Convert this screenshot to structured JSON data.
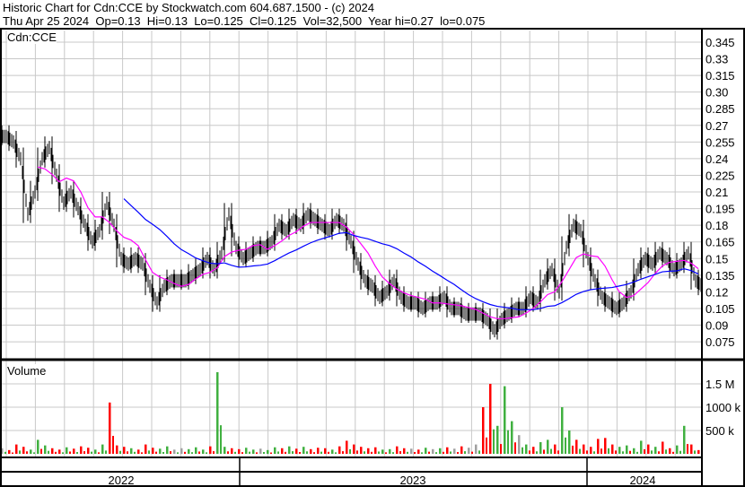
{
  "header": {
    "title": "Historic Chart for Cdn:CCE by Stockwatch.com 604.687.1500 - (c) 2024",
    "quote": "Thu Apr 25 2024  Op=0.13  Hi=0.13  Lo=0.125  Cl=0.125  Vol=32,500  Year hi=0.27  lo=0.075"
  },
  "chart_data": {
    "type": "line",
    "title": "Cdn:CCE",
    "price_axis": {
      "ticks": [
        "0.345",
        "0.33",
        "0.315",
        "0.30",
        "0.285",
        "0.27",
        "0.255",
        "0.24",
        "0.225",
        "0.21",
        "0.195",
        "0.18",
        "0.165",
        "0.15",
        "0.135",
        "0.12",
        "0.105",
        "0.09",
        "0.075"
      ],
      "ylim": [
        0.0675,
        0.3525
      ]
    },
    "volume_axis": {
      "label": "Volume",
      "ticks": [
        "1.5 M",
        "1000 k",
        "500 k"
      ],
      "ylim_k": [
        0,
        1900
      ]
    },
    "x_labels": [
      "2022",
      "2023",
      "2024"
    ],
    "grid": true,
    "colors": {
      "up": "#40b040",
      "down": "#ff0000",
      "flat": "#a0a0a0",
      "bars": "#000000",
      "ma_short": "#ff00ff",
      "ma_long": "#0000ff"
    },
    "close": [
      0.26,
      0.255,
      0.24,
      0.19,
      0.21,
      0.24,
      0.25,
      0.225,
      0.2,
      0.21,
      0.195,
      0.18,
      0.165,
      0.175,
      0.2,
      0.18,
      0.15,
      0.145,
      0.15,
      0.145,
      0.125,
      0.11,
      0.125,
      0.13,
      0.13,
      0.13,
      0.135,
      0.14,
      0.15,
      0.14,
      0.155,
      0.19,
      0.16,
      0.15,
      0.155,
      0.16,
      0.16,
      0.165,
      0.18,
      0.175,
      0.185,
      0.18,
      0.19,
      0.185,
      0.18,
      0.175,
      0.185,
      0.18,
      0.165,
      0.145,
      0.13,
      0.125,
      0.115,
      0.12,
      0.13,
      0.115,
      0.11,
      0.11,
      0.105,
      0.11,
      0.11,
      0.115,
      0.105,
      0.105,
      0.1,
      0.1,
      0.1,
      0.095,
      0.085,
      0.095,
      0.1,
      0.105,
      0.105,
      0.115,
      0.11,
      0.13,
      0.14,
      0.12,
      0.16,
      0.18,
      0.175,
      0.15,
      0.13,
      0.115,
      0.11,
      0.105,
      0.11,
      0.12,
      0.14,
      0.15,
      0.145,
      0.155,
      0.15,
      0.14,
      0.145,
      0.155,
      0.13,
      0.125
    ],
    "volume_k": [
      120,
      80,
      200,
      150,
      90,
      300,
      180,
      120,
      90,
      140,
      110,
      160,
      130,
      90,
      200,
      1100,
      180,
      150,
      120,
      90,
      200,
      130,
      110,
      160,
      90,
      120,
      100,
      140,
      90,
      160,
      1750,
      150,
      120,
      100,
      130,
      90,
      110,
      80,
      140,
      120,
      160,
      110,
      150,
      100,
      130,
      120,
      90,
      160,
      280,
      200,
      150,
      120,
      140,
      90,
      100,
      160,
      120,
      110,
      90,
      130,
      100,
      120,
      140,
      110,
      160,
      130,
      200,
      1000,
      1500,
      600,
      1450,
      700,
      400,
      200,
      150,
      250,
      300,
      200,
      1000,
      500,
      300,
      200,
      150,
      320,
      340,
      200,
      150,
      180,
      120,
      280,
      200,
      150,
      260,
      120,
      180,
      600,
      200,
      80
    ]
  }
}
